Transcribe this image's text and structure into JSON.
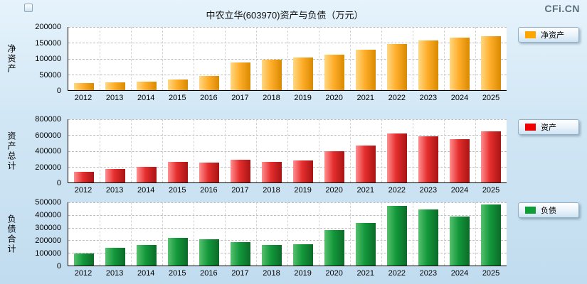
{
  "header": {
    "title": "中农立华(603970)资产与负债（万元）",
    "watermark": "CFi.CN"
  },
  "chart_data": [
    {
      "type": "bar",
      "axis_title": "净资产",
      "legend": "净资产",
      "categories": [
        "2012",
        "2013",
        "2014",
        "2015",
        "2016",
        "2017",
        "2018",
        "2019",
        "2020",
        "2021",
        "2022",
        "2023",
        "2024",
        "2025"
      ],
      "values": [
        22000,
        24000,
        27000,
        33000,
        44000,
        87000,
        96000,
        104000,
        113000,
        129000,
        147000,
        158000,
        167000,
        171000
      ],
      "ylim": [
        0,
        200000
      ],
      "ystep": 50000,
      "grid": "dashed",
      "legend_position": "right",
      "bar_color_light": "#FFD883",
      "bar_color": "#FFAE2B",
      "bar_color_dark": "#D98A00",
      "legend_color": "#FFA500"
    },
    {
      "type": "bar",
      "axis_title": "资产总计",
      "legend": "资产",
      "categories": [
        "2012",
        "2013",
        "2014",
        "2015",
        "2016",
        "2017",
        "2018",
        "2019",
        "2020",
        "2021",
        "2022",
        "2023",
        "2024",
        "2025"
      ],
      "values": [
        133000,
        169000,
        196000,
        258000,
        249000,
        284000,
        258000,
        276000,
        400000,
        471000,
        622000,
        587000,
        551000,
        649000
      ],
      "ylim": [
        0,
        800000
      ],
      "ystep": 200000,
      "grid": "dashed",
      "legend_position": "right",
      "bar_color_light": "#FF8F8F",
      "bar_color": "#E62E2E",
      "bar_color_dark": "#A81414",
      "legend_color": "#F00000"
    },
    {
      "type": "bar",
      "axis_title": "负债合计",
      "legend": "负债",
      "categories": [
        "2012",
        "2013",
        "2014",
        "2015",
        "2016",
        "2017",
        "2018",
        "2019",
        "2020",
        "2021",
        "2022",
        "2023",
        "2024",
        "2025"
      ],
      "values": [
        94000,
        139000,
        161000,
        217000,
        206000,
        183000,
        161000,
        167000,
        283000,
        339000,
        472000,
        444000,
        389000,
        483000
      ],
      "ylim": [
        0,
        500000
      ],
      "ystep": 100000,
      "grid": "dashed",
      "legend_position": "right",
      "bar_color_light": "#57C06F",
      "bar_color": "#13983B",
      "bar_color_dark": "#0B6B28",
      "legend_color": "#0E9E38"
    }
  ]
}
